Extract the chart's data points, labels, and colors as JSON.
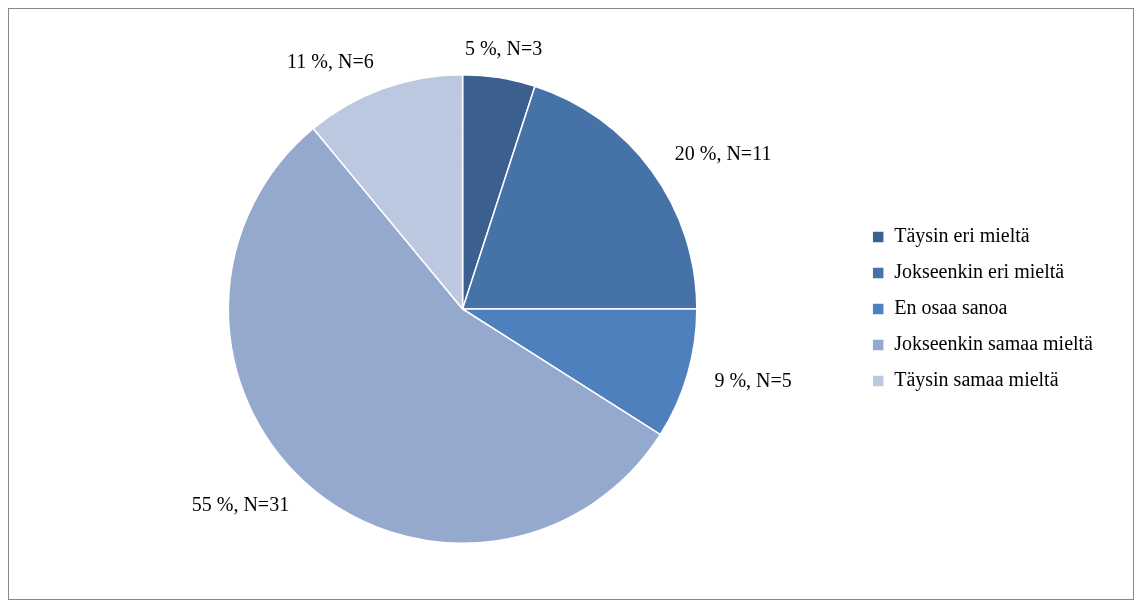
{
  "chart_data": {
    "type": "pie",
    "categories": [
      "Täysin eri mieltä",
      "Jokseenkin eri mieltä",
      "En osaa sanoa",
      "Jokseenkin samaa mieltä",
      "Täysin samaa mieltä"
    ],
    "values": [
      5,
      20,
      9,
      55,
      11
    ],
    "value_labels": [
      "5 %, N=3",
      "20 %, N=11",
      "9 %, N=5",
      "55 %, N=31",
      "11 %, N=6"
    ],
    "colors": [
      "#3b5f8e",
      "#4673a7",
      "#4e80bd",
      "#95a9cf",
      "#bcc8e0"
    ],
    "legend": "right"
  }
}
